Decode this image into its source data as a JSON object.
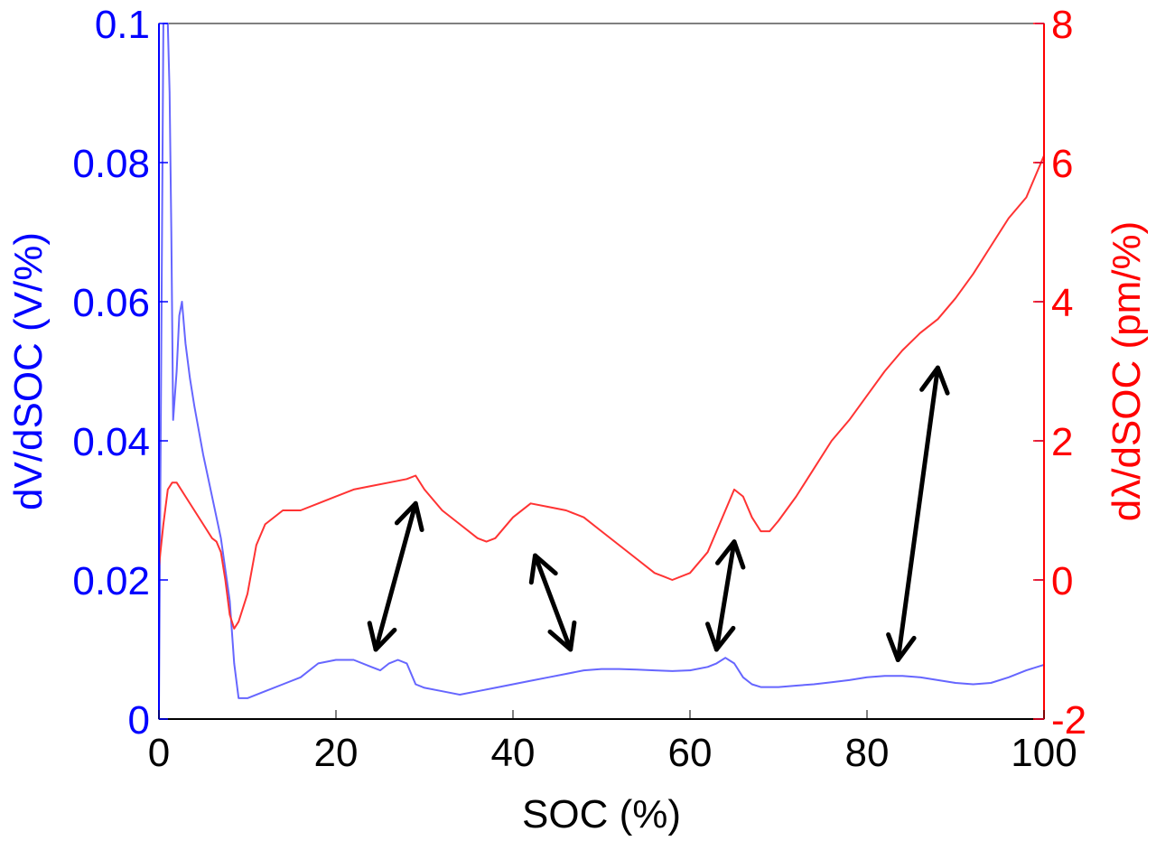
{
  "chart_data": {
    "type": "line",
    "title": "",
    "xlabel": "SOC (%)",
    "xlim": [
      0,
      100
    ],
    "x_ticks": [
      "0",
      "20",
      "40",
      "60",
      "80",
      "100"
    ],
    "grid": false,
    "legend": "none",
    "y_left": {
      "label": "dV/dSOC (V/%)",
      "ylim": [
        0,
        0.1
      ],
      "ticks": [
        "0",
        "0.02",
        "0.04",
        "0.06",
        "0.08",
        "0.1"
      ],
      "color": "#0000ff"
    },
    "y_right": {
      "label": "dλ/dSOC (pm/%)",
      "ylim": [
        -2,
        8
      ],
      "ticks": [
        "-2",
        "0",
        "2",
        "4",
        "6",
        "8"
      ],
      "color": "#ff0000"
    },
    "series": [
      {
        "axis": "left",
        "color": "#6666ff",
        "x": [
          0,
          0.5,
          0.8,
          1.0,
          1.2,
          1.4,
          1.6,
          2.0,
          2.3,
          2.6,
          3.0,
          3.5,
          4.0,
          5.0,
          6.0,
          7.0,
          8.0,
          8.5,
          9.0,
          9.5,
          10,
          12,
          14,
          16,
          18,
          20,
          22,
          24,
          25,
          26,
          27,
          28,
          29,
          30,
          32,
          34,
          36,
          38,
          40,
          42,
          44,
          46,
          48,
          50,
          52,
          54,
          56,
          58,
          60,
          62,
          63,
          64,
          65,
          66,
          67,
          68,
          70,
          72,
          74,
          76,
          78,
          80,
          82,
          84,
          86,
          88,
          90,
          92,
          94,
          96,
          98,
          100
        ],
        "values": [
          0.001,
          0.1,
          0.1,
          0.1,
          0.09,
          0.07,
          0.043,
          0.05,
          0.058,
          0.06,
          0.054,
          0.049,
          0.045,
          0.038,
          0.032,
          0.026,
          0.017,
          0.008,
          0.003,
          0.003,
          0.003,
          0.004,
          0.005,
          0.006,
          0.008,
          0.0085,
          0.0085,
          0.0075,
          0.007,
          0.008,
          0.0085,
          0.008,
          0.005,
          0.0045,
          0.004,
          0.0035,
          0.004,
          0.0045,
          0.005,
          0.0055,
          0.006,
          0.0065,
          0.007,
          0.0072,
          0.0072,
          0.0071,
          0.007,
          0.0069,
          0.007,
          0.0075,
          0.008,
          0.0088,
          0.008,
          0.006,
          0.005,
          0.0046,
          0.0046,
          0.0048,
          0.005,
          0.0053,
          0.0056,
          0.006,
          0.0062,
          0.0062,
          0.006,
          0.0056,
          0.0052,
          0.005,
          0.0052,
          0.006,
          0.007,
          0.0078
        ]
      },
      {
        "axis": "right",
        "color": "#ff3333",
        "x": [
          0,
          0.5,
          1,
          1.5,
          2,
          3,
          4,
          5,
          6,
          6.5,
          7,
          7.5,
          8,
          8.5,
          9,
          10,
          11,
          12,
          14,
          16,
          18,
          20,
          22,
          24,
          26,
          28,
          29,
          30,
          32,
          34,
          36,
          37,
          38,
          40,
          42,
          44,
          46,
          48,
          50,
          52,
          54,
          56,
          57,
          58,
          60,
          62,
          63,
          64,
          65,
          66,
          67,
          68,
          69,
          70,
          72,
          74,
          76,
          78,
          80,
          82,
          84,
          86,
          88,
          90,
          92,
          94,
          96,
          98,
          99,
          100
        ],
        "values": [
          0.2,
          0.8,
          1.3,
          1.4,
          1.4,
          1.2,
          1.0,
          0.8,
          0.6,
          0.55,
          0.4,
          0.0,
          -0.5,
          -0.7,
          -0.6,
          -0.2,
          0.5,
          0.8,
          1.0,
          1.0,
          1.1,
          1.2,
          1.3,
          1.35,
          1.4,
          1.45,
          1.5,
          1.3,
          1.0,
          0.8,
          0.6,
          0.55,
          0.6,
          0.9,
          1.1,
          1.05,
          1.0,
          0.9,
          0.7,
          0.5,
          0.3,
          0.1,
          0.05,
          0.0,
          0.1,
          0.4,
          0.7,
          1.0,
          1.3,
          1.2,
          0.9,
          0.7,
          0.7,
          0.85,
          1.2,
          1.6,
          2.0,
          2.3,
          2.65,
          3.0,
          3.3,
          3.55,
          3.75,
          4.05,
          4.4,
          4.8,
          5.2,
          5.5,
          5.8,
          6.1
        ]
      }
    ],
    "annotations": [
      {
        "type": "double-arrow",
        "color": "#000000",
        "from": [
          24.5,
          0.01
        ],
        "to": [
          29,
          0.031
        ]
      },
      {
        "type": "double-arrow",
        "color": "#000000",
        "from": [
          42.5,
          0.0235
        ],
        "to": [
          46.5,
          0.01
        ]
      },
      {
        "type": "double-arrow",
        "color": "#000000",
        "from": [
          63,
          0.01
        ],
        "to": [
          65,
          0.0255
        ]
      },
      {
        "type": "double-arrow",
        "color": "#000000",
        "from": [
          83.5,
          0.0085
        ],
        "to": [
          88,
          0.0505
        ]
      }
    ]
  }
}
